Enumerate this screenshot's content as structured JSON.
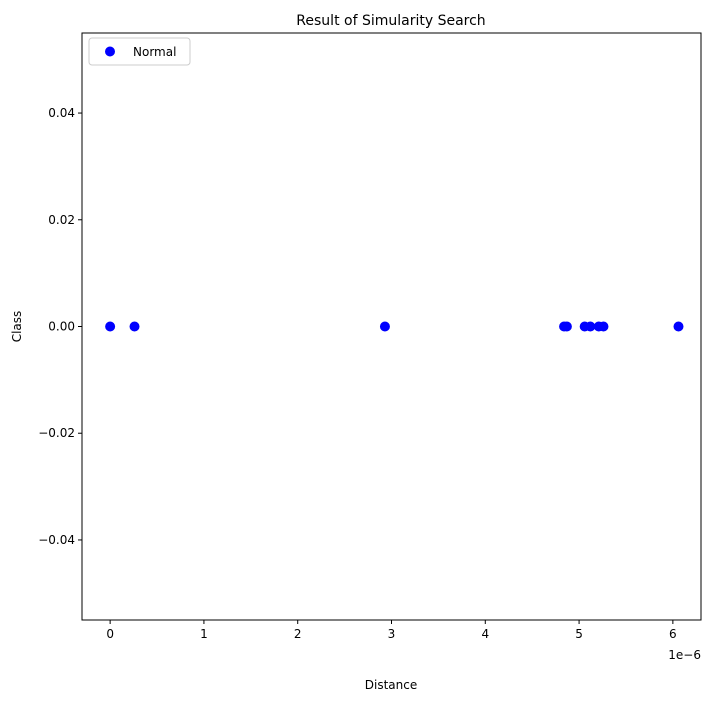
{
  "chart_data": {
    "type": "scatter",
    "title": "Result of Simularity Search",
    "xlabel": "Distance",
    "ylabel": "Class",
    "x_offset_label": "1e−6",
    "xlim": [
      -0.3,
      6.3
    ],
    "ylim": [
      -0.055,
      0.055
    ],
    "x_ticks": [
      0,
      1,
      2,
      3,
      4,
      5,
      6
    ],
    "x_tick_labels": [
      "0",
      "1",
      "2",
      "3",
      "4",
      "5",
      "6"
    ],
    "y_ticks": [
      0.04,
      0.02,
      0.0,
      -0.02,
      -0.04
    ],
    "y_tick_labels": [
      "0.04",
      "0.02",
      "0.00",
      "−0.02",
      "−0.04"
    ],
    "grid": false,
    "legend_position": "upper-left",
    "series": [
      {
        "name": "Normal",
        "color": "#0000ff",
        "x": [
          0.0,
          0.26,
          2.93,
          4.84,
          4.87,
          5.06,
          5.12,
          5.21,
          5.26,
          6.06
        ],
        "y": [
          0,
          0,
          0,
          0,
          0,
          0,
          0,
          0,
          0,
          0
        ]
      }
    ]
  }
}
